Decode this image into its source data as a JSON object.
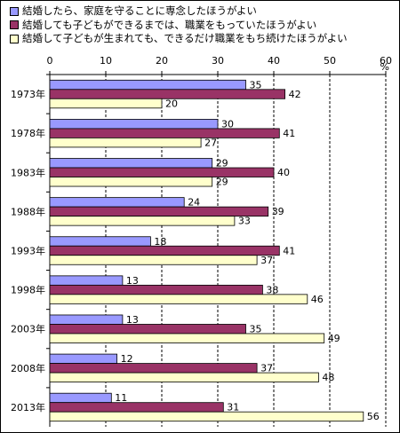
{
  "chart_data": {
    "type": "bar",
    "orientation": "horizontal",
    "categories": [
      "1973年",
      "1978年",
      "1983年",
      "1988年",
      "1993年",
      "1998年",
      "2003年",
      "2008年",
      "2013年"
    ],
    "series": [
      {
        "name": "結婚したら、家庭を守ることに専念したほうがよい",
        "color": "#9999FF",
        "values": [
          35,
          30,
          29,
          24,
          18,
          13,
          13,
          12,
          11
        ]
      },
      {
        "name": "結婚しても子どもができるまでは、職業をもっていたほうがよい",
        "color": "#993366",
        "values": [
          42,
          41,
          40,
          39,
          41,
          38,
          35,
          37,
          31
        ]
      },
      {
        "name": "結婚して子どもが生まれても、できるだけ職業をもち続けたほうがよい",
        "color": "#FFFFCC",
        "values": [
          20,
          27,
          29,
          33,
          37,
          46,
          49,
          48,
          56
        ]
      }
    ],
    "xlim": [
      0,
      60
    ],
    "xticks": [
      "0",
      "10",
      "20",
      "30",
      "40",
      "50",
      "60"
    ],
    "unit": "%",
    "grid": true,
    "legend_position": "top"
  }
}
